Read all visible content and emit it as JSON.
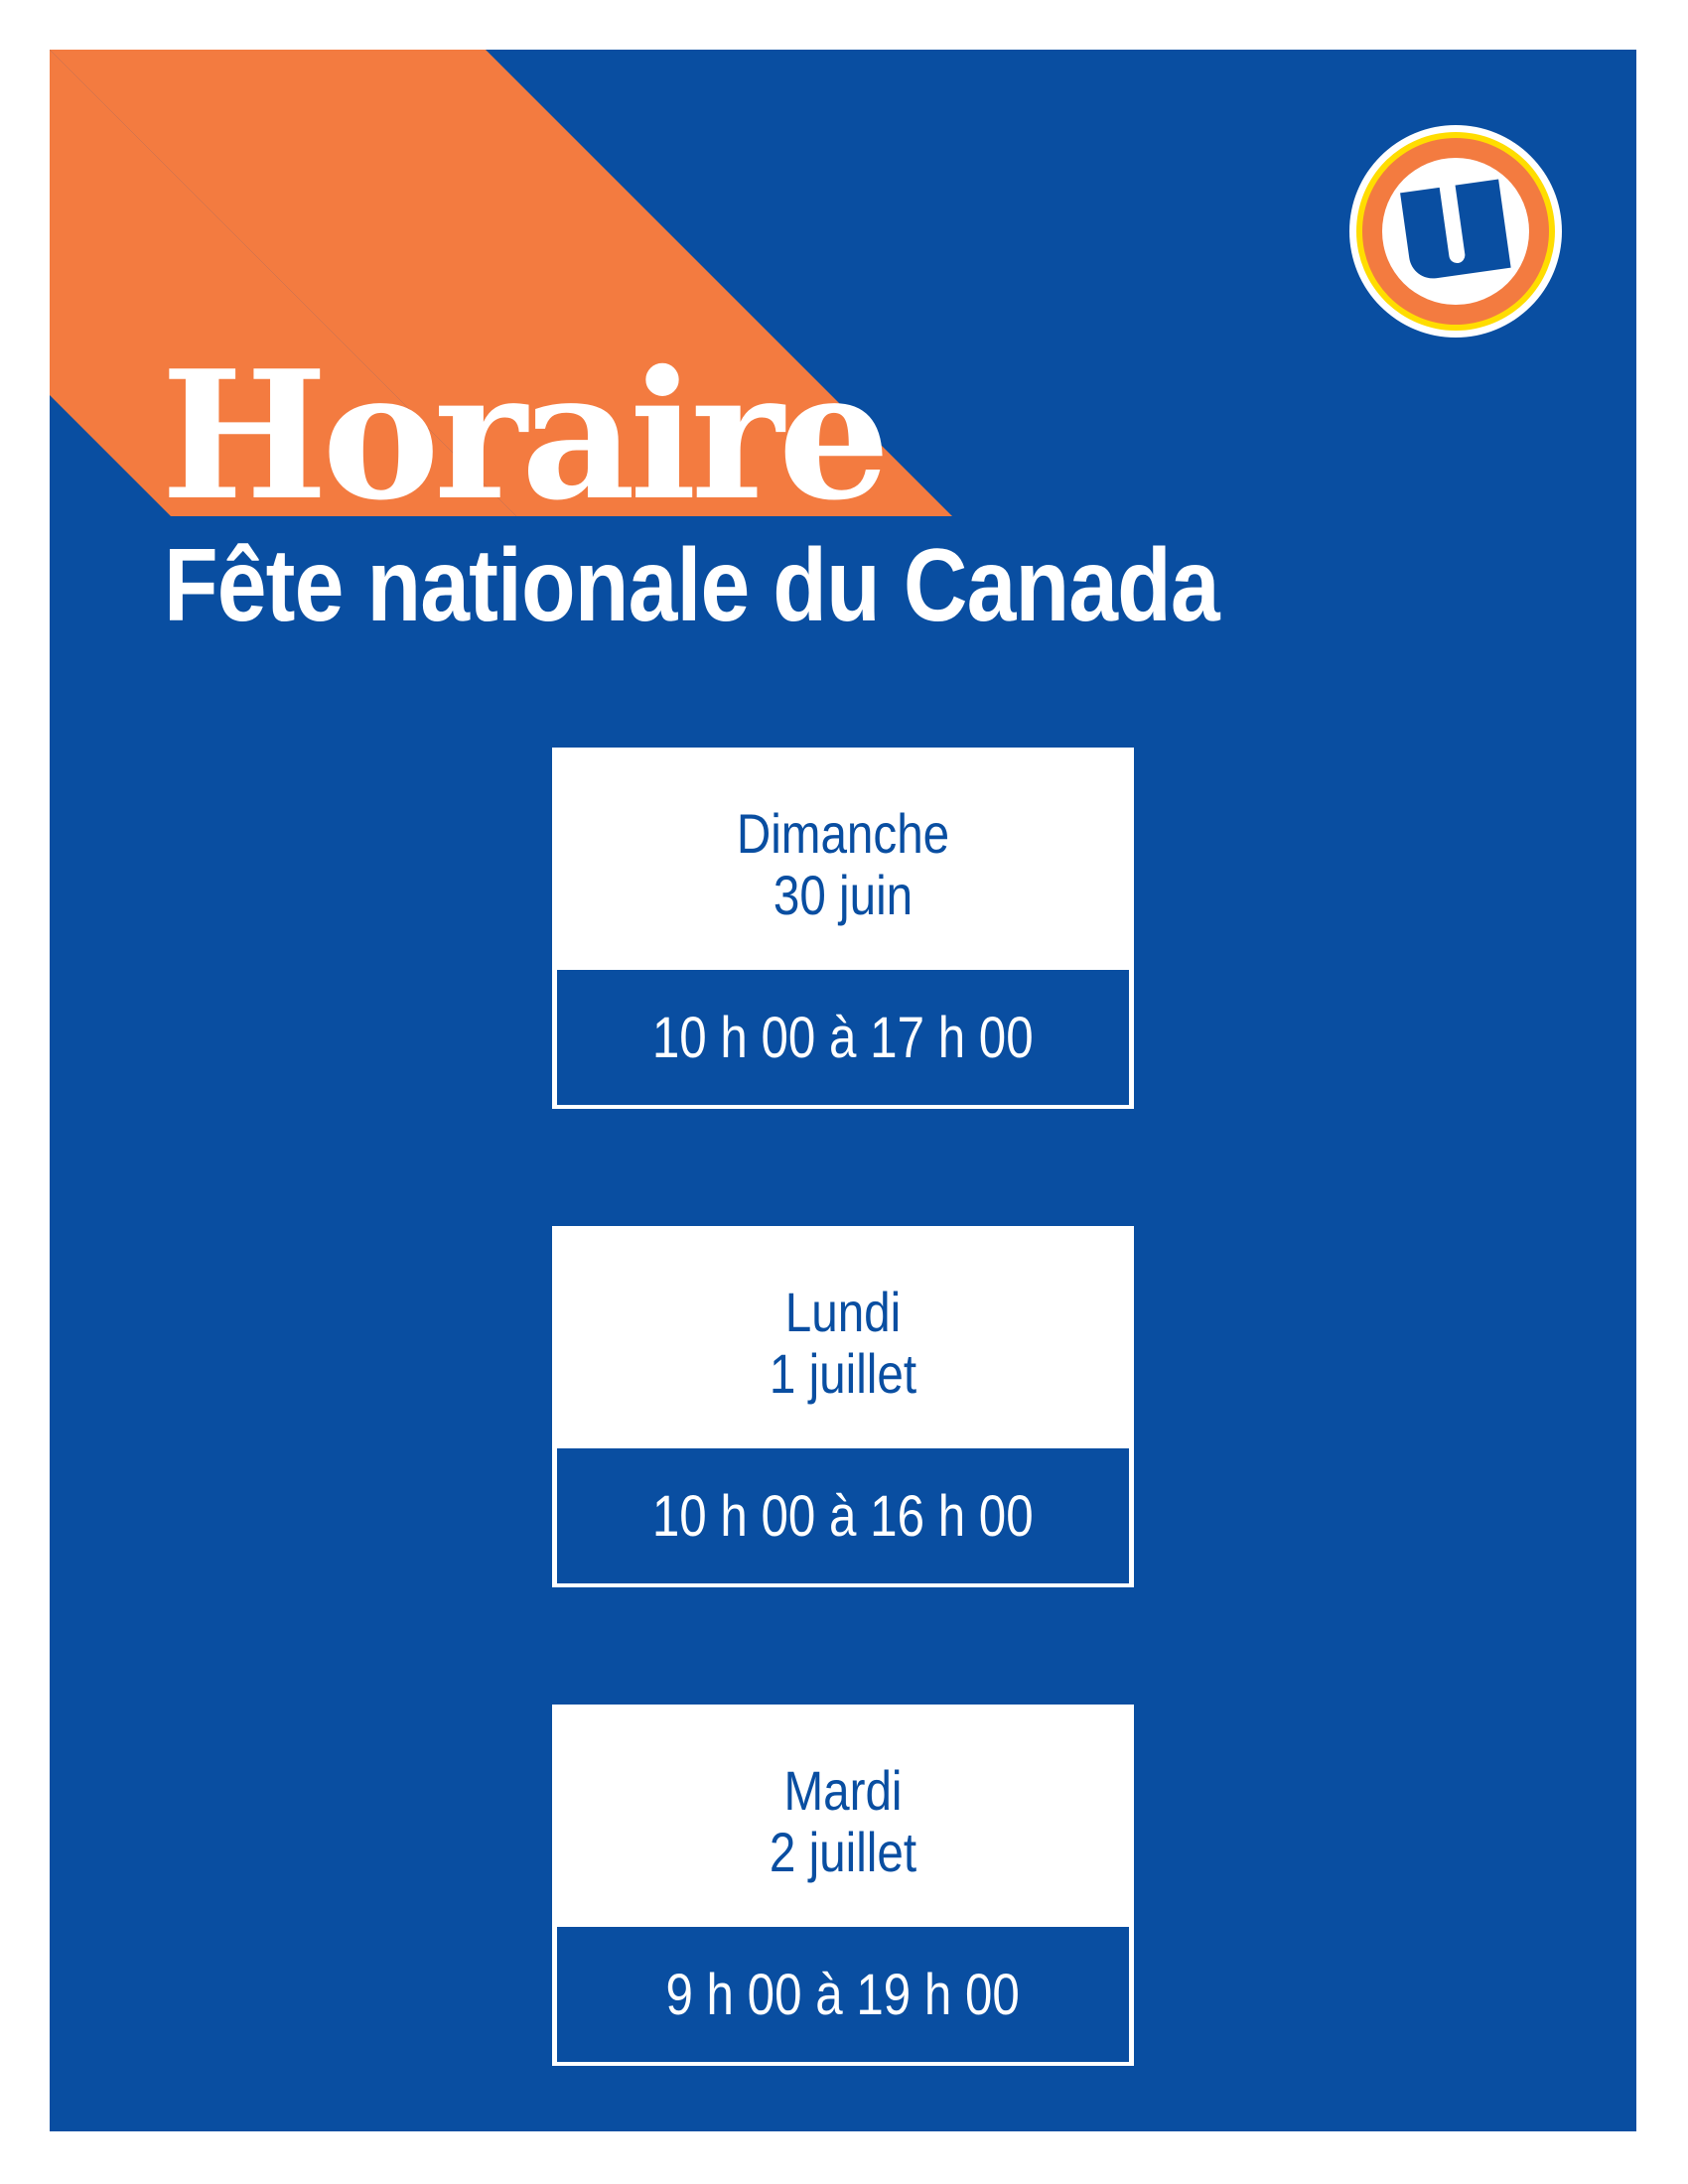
{
  "colors": {
    "background_blue": "#094ea1",
    "accent_orange": "#f37b40",
    "logo_yellow": "#ffdd00",
    "white": "#ffffff"
  },
  "logo": {
    "icon": "uniprix-u-logo",
    "text": "U"
  },
  "header": {
    "title": "Horaire",
    "subtitle": "Fête nationale du Canada"
  },
  "schedule": [
    {
      "day": "Dimanche",
      "date": "30 juin",
      "hours": "10 h 00 à 17 h 00"
    },
    {
      "day": "Lundi",
      "date": "1 juillet",
      "hours": "10 h 00 à 16 h 00"
    },
    {
      "day": "Mardi",
      "date": "2 juillet",
      "hours": "9 h 00 à 19 h 00"
    }
  ]
}
